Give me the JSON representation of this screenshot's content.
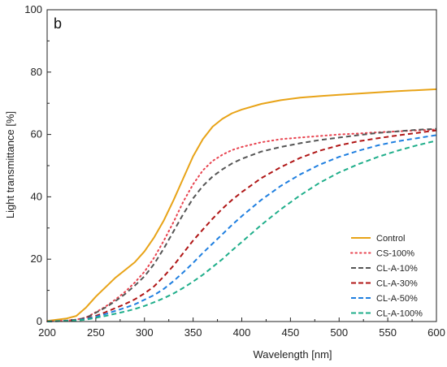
{
  "chart_data": {
    "type": "line",
    "panel_label": "b",
    "xlabel": "Wavelength [nm]",
    "ylabel": "Light transmittance [%]",
    "xlim": [
      200,
      600
    ],
    "ylim": [
      0,
      100
    ],
    "x_ticks": [
      200,
      250,
      300,
      350,
      400,
      450,
      500,
      550,
      600
    ],
    "y_ticks": [
      0,
      20,
      40,
      60,
      80,
      100
    ],
    "grid": false,
    "legend_position": "bottom-right",
    "x": [
      200,
      220,
      230,
      240,
      250,
      260,
      270,
      280,
      290,
      300,
      310,
      320,
      330,
      340,
      350,
      360,
      370,
      380,
      390,
      400,
      420,
      440,
      460,
      480,
      500,
      520,
      540,
      560,
      580,
      600
    ],
    "series": [
      {
        "name": "Control",
        "color": "#E8A317",
        "style": "solid",
        "values": [
          0.2,
          1.0,
          1.8,
          4.5,
          8.0,
          11.0,
          14.0,
          16.5,
          19.0,
          22.5,
          27.0,
          32.5,
          39.0,
          46.0,
          53.0,
          58.5,
          62.5,
          65.0,
          66.8,
          68.0,
          69.8,
          71.0,
          71.8,
          72.3,
          72.7,
          73.1,
          73.5,
          73.9,
          74.2,
          74.5
        ]
      },
      {
        "name": "CS-100%",
        "color": "#E8434F",
        "style": "dotted",
        "values": [
          0,
          0.3,
          0.6,
          1.3,
          3.0,
          4.8,
          7.0,
          9.5,
          12.5,
          16.0,
          20.5,
          26.0,
          32.0,
          38.5,
          44.0,
          48.5,
          51.5,
          53.5,
          55.0,
          56.0,
          57.5,
          58.5,
          59.0,
          59.5,
          60.0,
          60.3,
          60.7,
          61.0,
          61.3,
          61.6
        ]
      },
      {
        "name": "CL-A-10%",
        "color": "#555555",
        "style": "dashed",
        "values": [
          0,
          0.3,
          0.6,
          1.2,
          2.8,
          4.5,
          6.5,
          8.8,
          11.5,
          14.5,
          18.5,
          23.5,
          29.0,
          34.5,
          39.5,
          43.5,
          46.5,
          48.8,
          50.7,
          52.2,
          54.5,
          56.0,
          57.2,
          58.2,
          59.0,
          59.8,
          60.5,
          61.0,
          61.5,
          61.8
        ]
      },
      {
        "name": "CL-A-30%",
        "color": "#B01616",
        "style": "dashed",
        "values": [
          0,
          0.2,
          0.4,
          0.9,
          1.8,
          3.0,
          4.3,
          5.6,
          7.1,
          9.0,
          11.3,
          14.5,
          18.0,
          22.0,
          26.0,
          29.5,
          33.0,
          36.2,
          39.0,
          41.5,
          46.0,
          49.5,
          52.5,
          54.8,
          56.5,
          57.8,
          58.8,
          59.7,
          60.5,
          61.3
        ]
      },
      {
        "name": "CL-A-50%",
        "color": "#1F7FE0",
        "style": "dashed",
        "values": [
          0,
          0.2,
          0.4,
          0.8,
          1.5,
          2.4,
          3.4,
          4.4,
          5.5,
          7.0,
          8.5,
          10.5,
          13.0,
          15.8,
          18.8,
          22.0,
          25.0,
          28.0,
          31.0,
          33.8,
          39.0,
          43.5,
          47.2,
          50.3,
          52.8,
          54.8,
          56.5,
          57.8,
          58.8,
          59.8
        ]
      },
      {
        "name": "CL-A-100%",
        "color": "#1FAE8A",
        "style": "dashed",
        "values": [
          0,
          0.2,
          0.3,
          0.6,
          1.2,
          1.8,
          2.5,
          3.2,
          4.0,
          5.0,
          6.2,
          7.5,
          9.0,
          10.8,
          12.8,
          15.0,
          17.5,
          20.0,
          22.8,
          25.5,
          31.0,
          36.0,
          40.5,
          44.5,
          47.8,
          50.5,
          52.8,
          54.8,
          56.5,
          58.0
        ]
      }
    ]
  }
}
